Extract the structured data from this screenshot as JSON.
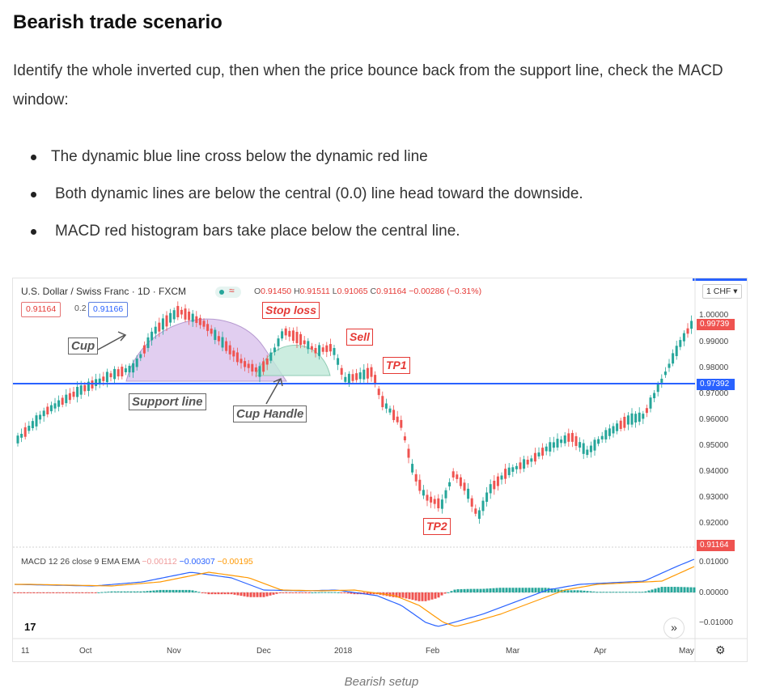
{
  "heading": "Bearish trade scenario",
  "intro": "Identify the whole inverted cup, then when the price bounce back from the support line, check the MACD window:",
  "bullets": [
    "The dynamic blue line cross below the dynamic red line",
    "Both dynamic lines are below the central (0.0) line head toward the downside.",
    "MACD red histogram bars take place below the central line."
  ],
  "chart": {
    "title": "U.S. Dollar / Swiss Franc · 1D · FXCM",
    "ohlc": {
      "o_label": "O",
      "o": "0.91450",
      "h_label": "H",
      "h": "0.91511",
      "l_label": "L",
      "l": "0.91065",
      "c_label": "C",
      "c": "0.91164",
      "chg": "−0.00286 (−0.31%)"
    },
    "sell_price": "0.91164",
    "spread": "0.2",
    "buy_price": "0.91166",
    "currency": "CHF",
    "annotations": {
      "cup": "Cup",
      "support": "Support line",
      "handle": "Cup Handle",
      "stop": "Stop loss",
      "sell": "Sell",
      "tp1": "TP1",
      "tp2": "TP2"
    },
    "price_axis": [
      "1.00000",
      "0.99000",
      "0.98000",
      "0.97000",
      "0.96000",
      "0.95000",
      "0.94000",
      "0.93000",
      "0.92000"
    ],
    "price_tags": {
      "current": "0.99739",
      "support": "0.97392",
      "last": "0.91164"
    },
    "time_axis": [
      "11",
      "Oct",
      "Nov",
      "Dec",
      "2018",
      "Feb",
      "Mar",
      "Apr",
      "May"
    ],
    "macd": {
      "label": "MACD 12 26 close 9 EMA EMA",
      "hist": "−0.00112",
      "macd": "−0.00307",
      "signal": "−0.00195",
      "axis": [
        "0.01000",
        "0.00000",
        "−0.01000"
      ]
    },
    "colors": {
      "up": "#26a69a",
      "down": "#ef5350",
      "support": "#2962ff",
      "macd": "#2962ff",
      "signal": "#ff9800",
      "cup": "#c9a7e0",
      "handle": "#a5dcc8"
    }
  },
  "caption": "Bearish setup"
}
